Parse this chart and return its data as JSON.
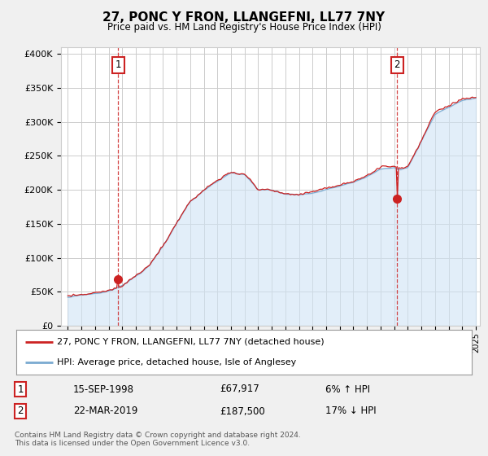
{
  "title": "27, PONC Y FRON, LLANGEFNI, LL77 7NY",
  "subtitle": "Price paid vs. HM Land Registry's House Price Index (HPI)",
  "ylabel_ticks": [
    "£0",
    "£50K",
    "£100K",
    "£150K",
    "£200K",
    "£250K",
    "£300K",
    "£350K",
    "£400K"
  ],
  "ytick_values": [
    0,
    50000,
    100000,
    150000,
    200000,
    250000,
    300000,
    350000,
    400000
  ],
  "ylim": [
    0,
    410000
  ],
  "xlim_start": 1994.5,
  "xlim_end": 2025.3,
  "hpi_color": "#7aaad0",
  "hpi_fill_color": "#d0e4f5",
  "price_color": "#cc2222",
  "marker1_date": 1998.71,
  "marker1_price": 67917,
  "marker1_label": "15-SEP-1998",
  "marker1_amount": "£67,917",
  "marker1_pct": "6% ↑ HPI",
  "marker2_date": 2019.22,
  "marker2_price": 187500,
  "marker2_label": "22-MAR-2019",
  "marker2_amount": "£187,500",
  "marker2_pct": "17% ↓ HPI",
  "legend_line1": "27, PONC Y FRON, LLANGEFNI, LL77 7NY (detached house)",
  "legend_line2": "HPI: Average price, detached house, Isle of Anglesey",
  "footnote": "Contains HM Land Registry data © Crown copyright and database right 2024.\nThis data is licensed under the Open Government Licence v3.0.",
  "bg_color": "#f0f0f0",
  "plot_bg_color": "#ffffff",
  "grid_color": "#cccccc"
}
